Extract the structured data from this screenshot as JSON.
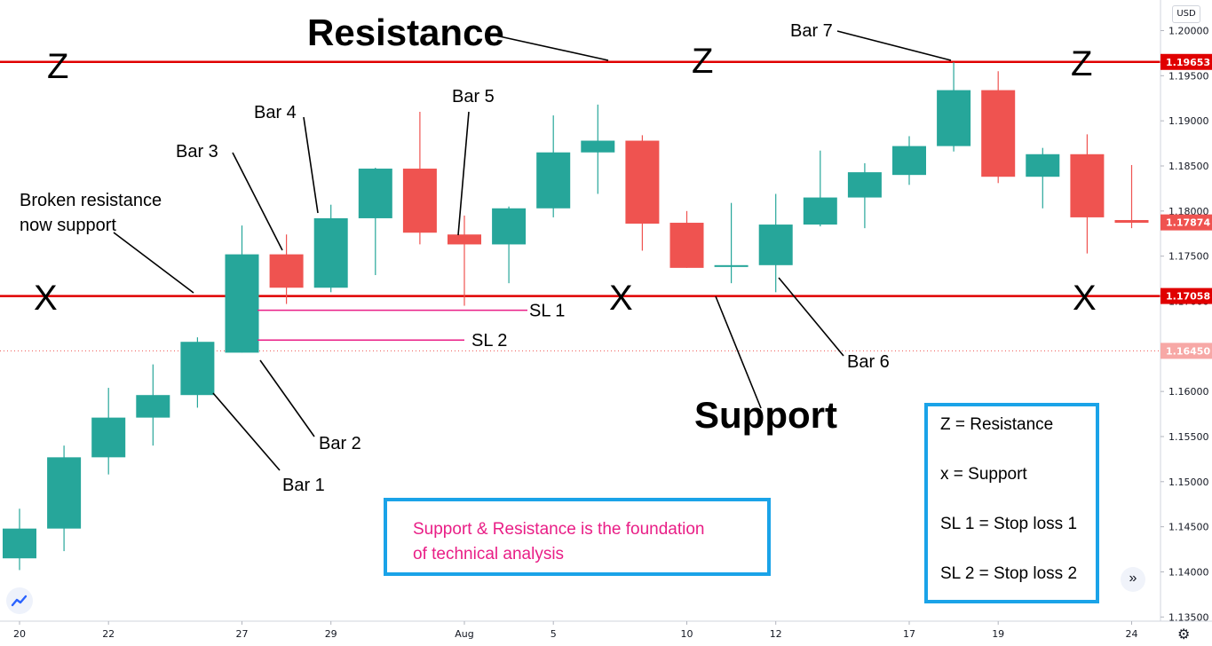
{
  "chart_data": {
    "type": "candlestick",
    "currency": "USD",
    "x_ticks": [
      "20",
      "22",
      "27",
      "29",
      "Aug",
      "5",
      "10",
      "12",
      "17",
      "19",
      "24"
    ],
    "y_ticks": [
      "1.20000",
      "1.19500",
      "1.19000",
      "1.18500",
      "1.18000",
      "1.17500",
      "1.17000",
      "1.16500",
      "1.16000",
      "1.15500",
      "1.15000",
      "1.14500",
      "1.14000",
      "1.13500"
    ],
    "ylim": [
      1.1335,
      1.2035
    ],
    "candles": [
      {
        "o": 1.1415,
        "h": 1.147,
        "l": 1.1402,
        "c": 1.1448
      },
      {
        "o": 1.1448,
        "h": 1.154,
        "l": 1.1423,
        "c": 1.1527
      },
      {
        "o": 1.1527,
        "h": 1.1604,
        "l": 1.1508,
        "c": 1.1571
      },
      {
        "o": 1.1571,
        "h": 1.163,
        "l": 1.154,
        "c": 1.1596
      },
      {
        "o": 1.1596,
        "h": 1.166,
        "l": 1.1582,
        "c": 1.1655
      },
      {
        "o": 1.1643,
        "h": 1.1784,
        "l": 1.1643,
        "c": 1.1752
      },
      {
        "o": 1.1752,
        "h": 1.1774,
        "l": 1.1697,
        "c": 1.1715
      },
      {
        "o": 1.1715,
        "h": 1.1807,
        "l": 1.171,
        "c": 1.1792
      },
      {
        "o": 1.1792,
        "h": 1.1848,
        "l": 1.1729,
        "c": 1.1847
      },
      {
        "o": 1.1847,
        "h": 1.191,
        "l": 1.1763,
        "c": 1.1776
      },
      {
        "o": 1.1774,
        "h": 1.1795,
        "l": 1.1695,
        "c": 1.1763
      },
      {
        "o": 1.1763,
        "h": 1.1805,
        "l": 1.172,
        "c": 1.1803
      },
      {
        "o": 1.1803,
        "h": 1.1906,
        "l": 1.1793,
        "c": 1.1865
      },
      {
        "o": 1.1865,
        "h": 1.1918,
        "l": 1.1819,
        "c": 1.1878
      },
      {
        "o": 1.1878,
        "h": 1.1884,
        "l": 1.1756,
        "c": 1.1786
      },
      {
        "o": 1.1787,
        "h": 1.18,
        "l": 1.1737,
        "c": 1.1737
      },
      {
        "o": 1.1738,
        "h": 1.1809,
        "l": 1.172,
        "c": 1.174
      },
      {
        "o": 1.174,
        "h": 1.1819,
        "l": 1.171,
        "c": 1.1785
      },
      {
        "o": 1.1785,
        "h": 1.1867,
        "l": 1.1783,
        "c": 1.1815
      },
      {
        "o": 1.1815,
        "h": 1.1853,
        "l": 1.1781,
        "c": 1.1843
      },
      {
        "o": 1.184,
        "h": 1.1883,
        "l": 1.1829,
        "c": 1.1872
      },
      {
        "o": 1.1872,
        "h": 1.1965,
        "l": 1.1866,
        "c": 1.1934
      },
      {
        "o": 1.1934,
        "h": 1.1955,
        "l": 1.1831,
        "c": 1.1838
      },
      {
        "o": 1.1838,
        "h": 1.187,
        "l": 1.1803,
        "c": 1.1863
      },
      {
        "o": 1.1863,
        "h": 1.1885,
        "l": 1.1753,
        "c": 1.1793
      },
      {
        "o": 1.179,
        "h": 1.1851,
        "l": 1.1781,
        "c": 1.1787
      }
    ],
    "colors": {
      "up": "#26a69a",
      "down": "#ef5350",
      "level_line": "#e00000",
      "annotation_pink": "#e91e86",
      "box_border": "#1aa3e8"
    },
    "levels": [
      {
        "price": 1.19653,
        "label": "1.19653"
      },
      {
        "price": 1.17058,
        "label": "1.17058"
      }
    ],
    "last_price": {
      "price": 1.17874,
      "label": "1.17874"
    },
    "dotted_level": {
      "price": 1.1645,
      "label": "1.16450"
    },
    "stop_losses": [
      {
        "label": "SL 1",
        "price": 1.169
      },
      {
        "label": "SL 2",
        "price": 1.1657
      }
    ],
    "annotations": {
      "resistance_title": "Resistance",
      "support_title": "Support",
      "z_marks": [
        "Z",
        "Z",
        "Z"
      ],
      "x_marks": [
        "X",
        "X",
        "X"
      ],
      "broken_line1": "Broken resistance",
      "broken_line2": "now support",
      "bars": [
        "Bar 1",
        "Bar 2",
        "Bar 3",
        "Bar 4",
        "Bar 5",
        "Bar 6",
        "Bar 7"
      ]
    }
  },
  "info_box": {
    "line1": "Support & Resistance is the foundation",
    "line2": "of technical analysis"
  },
  "legend_box": {
    "items": [
      "Z  = Resistance",
      "x  = Support",
      "SL 1 = Stop loss 1",
      "SL 2  = Stop loss 2"
    ]
  },
  "ui": {
    "usd_badge": "USD",
    "scroll_icon": "double-chevron-right-icon",
    "settings_icon": "gear-icon",
    "logo_icon": "tradingview-logo-icon"
  }
}
